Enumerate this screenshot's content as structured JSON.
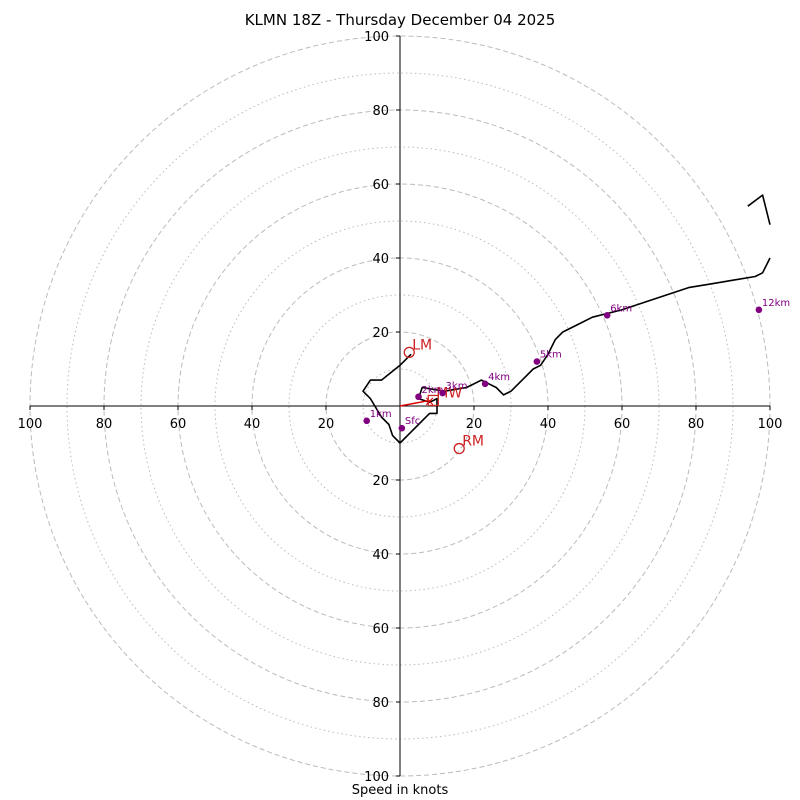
{
  "chart_data": {
    "type": "hodograph",
    "title": "KLMN 18Z - Thursday December 04 2025",
    "xlabel": "Speed in knots",
    "range": 100,
    "ring_major": [
      20,
      40,
      60,
      80,
      100
    ],
    "ring_minor": [
      10,
      30,
      50,
      70,
      90
    ],
    "tick_labels": {
      "top": [
        "100",
        "80",
        "60",
        "40",
        "20"
      ],
      "bottom": [
        "20",
        "40",
        "60",
        "80",
        "100"
      ],
      "left": [
        "100",
        "80",
        "60",
        "40",
        "20"
      ],
      "right": [
        "20",
        "40",
        "60",
        "80",
        "100"
      ]
    },
    "tick_values": [
      100,
      80,
      60,
      40,
      20
    ],
    "trace": [
      [
        3,
        14
      ],
      [
        0,
        11
      ],
      [
        -5,
        7
      ],
      [
        -8,
        7
      ],
      [
        -10,
        4
      ],
      [
        -8,
        2
      ],
      [
        -5,
        -3
      ],
      [
        -3,
        -5
      ],
      [
        -2,
        -8
      ],
      [
        0,
        -10
      ],
      [
        3,
        -7
      ],
      [
        5,
        -5
      ],
      [
        7,
        -3
      ],
      [
        8,
        -2
      ],
      [
        10,
        -2
      ],
      [
        10,
        2
      ],
      [
        8,
        1
      ],
      [
        5,
        2
      ],
      [
        6,
        5
      ],
      [
        12,
        4
      ],
      [
        18,
        5
      ],
      [
        22,
        7
      ],
      [
        24,
        6
      ],
      [
        26,
        5
      ],
      [
        28,
        3
      ],
      [
        30,
        4
      ],
      [
        32,
        6
      ],
      [
        34,
        8
      ],
      [
        36,
        10
      ],
      [
        38,
        11
      ],
      [
        40,
        14
      ],
      [
        42,
        18
      ],
      [
        44,
        20
      ],
      [
        48,
        22
      ],
      [
        52,
        24
      ],
      [
        56,
        25
      ],
      [
        60,
        26
      ],
      [
        66,
        28
      ],
      [
        72,
        30
      ],
      [
        78,
        32
      ],
      [
        84,
        33
      ],
      [
        90,
        34
      ],
      [
        96,
        35
      ],
      [
        98,
        36
      ],
      [
        100,
        40
      ]
    ],
    "trace_tail": [
      [
        100,
        49
      ],
      [
        98,
        57
      ],
      [
        94,
        54
      ]
    ],
    "height_markers": [
      {
        "label": "Sfc",
        "u": 0.5,
        "v": -6
      },
      {
        "label": "1km",
        "u": -9,
        "v": -4
      },
      {
        "label": "2km",
        "u": 5,
        "v": 2.5
      },
      {
        "label": "3km",
        "u": 11.5,
        "v": 3.5
      },
      {
        "label": "4km",
        "u": 23,
        "v": 6
      },
      {
        "label": "5km",
        "u": 37,
        "v": 12
      },
      {
        "label": "6km",
        "u": 56,
        "v": 24.5
      },
      {
        "label": "12km",
        "u": 97,
        "v": 26
      }
    ],
    "motion_markers": [
      {
        "label": "LM",
        "u": 2.5,
        "v": 14.5
      },
      {
        "label": "RM",
        "u": 16,
        "v": -11.5
      },
      {
        "label": "MW",
        "u": 9,
        "v": 1.5
      }
    ],
    "shear_vector": {
      "from": [
        0,
        0
      ],
      "to": [
        8,
        1.5
      ]
    },
    "colors": {
      "trace": "#000000",
      "height_marker": "#800080",
      "motion": "#cc2222",
      "shear": "#dd0000",
      "grid": "#bbbbbb"
    }
  }
}
